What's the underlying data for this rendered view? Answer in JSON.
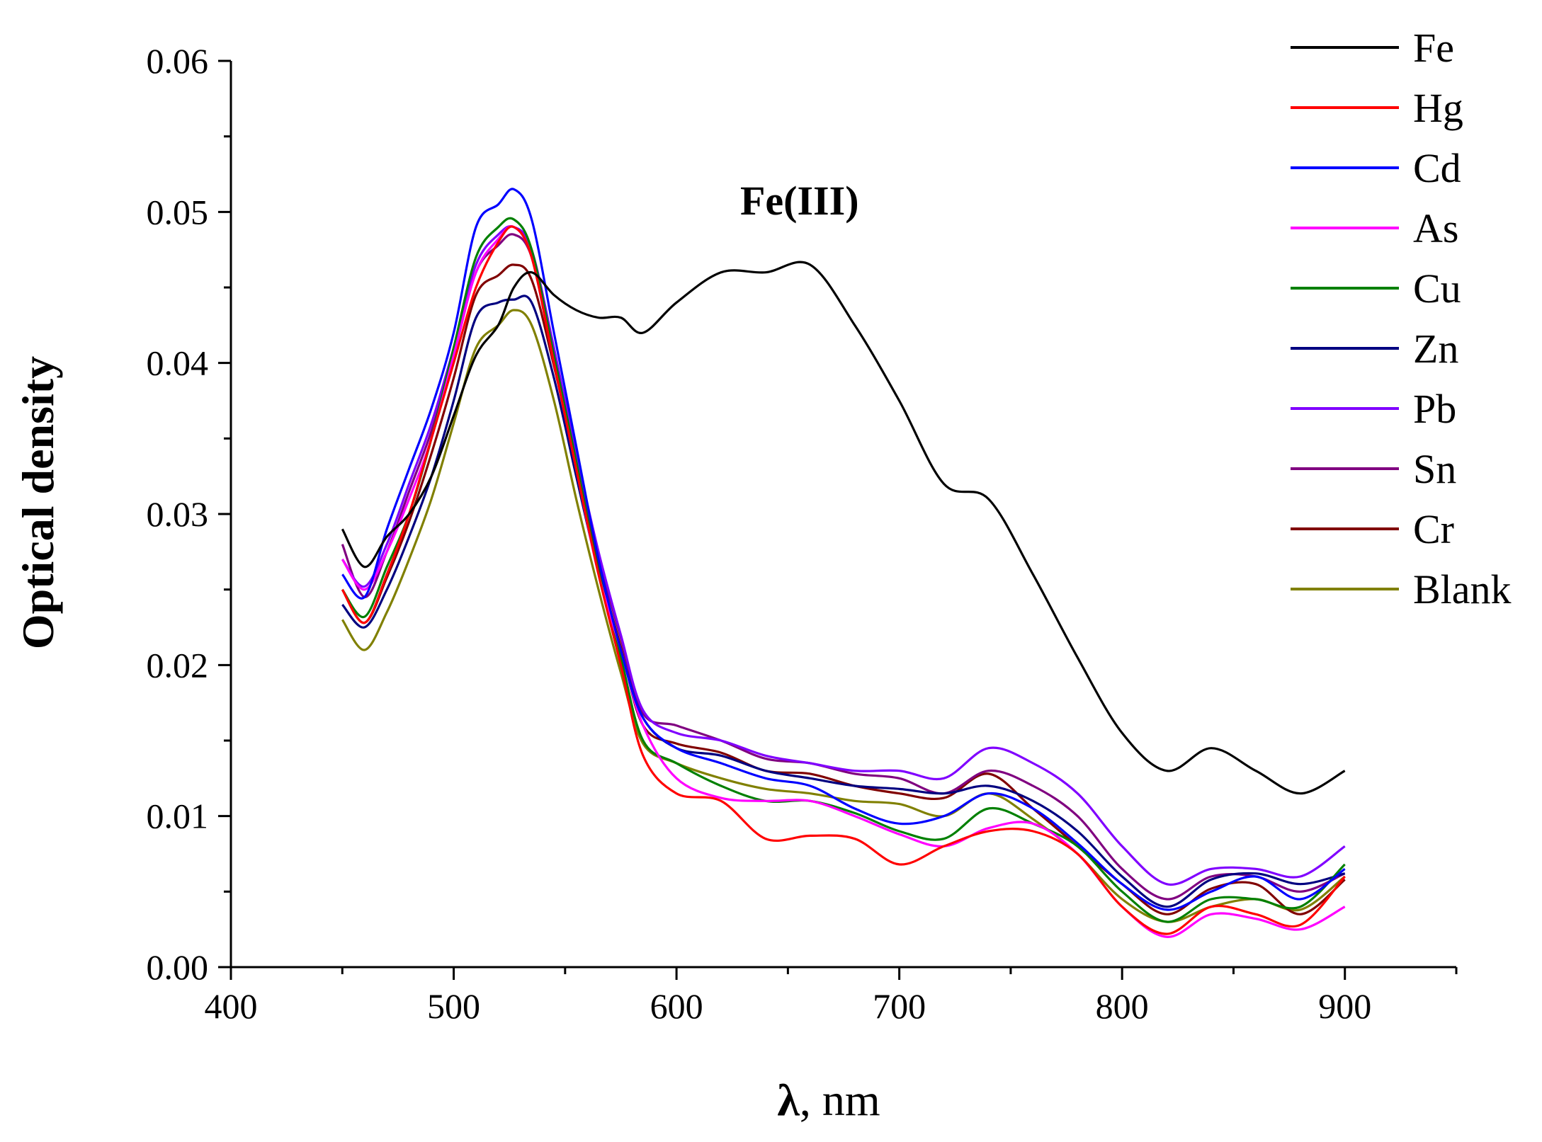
{
  "chart_data": {
    "type": "line",
    "xlabel_symbol": "λ",
    "xlabel_rest": ", nm",
    "ylabel": "Optical density",
    "annotation": "Fe(III)",
    "xlim": [
      400,
      950
    ],
    "ylim": [
      0,
      0.06
    ],
    "x_ticks": [
      400,
      500,
      600,
      700,
      800,
      900
    ],
    "x_tick_labels": [
      "400",
      "500",
      "600",
      "700",
      "800",
      "900"
    ],
    "y_ticks": [
      0,
      0.01,
      0.02,
      0.03,
      0.04,
      0.05,
      0.06
    ],
    "y_tick_labels": [
      "0.00",
      "0.01",
      "0.02",
      "0.03",
      "0.04",
      "0.05",
      "0.06"
    ],
    "legend_position": "top-right",
    "x": [
      450,
      460,
      470,
      480,
      490,
      500,
      510,
      520,
      527,
      535,
      545,
      555,
      565,
      575,
      585,
      600,
      620,
      640,
      660,
      680,
      700,
      720,
      740,
      760,
      780,
      800,
      820,
      840,
      860,
      880,
      900
    ],
    "series": [
      {
        "name": "Fe",
        "color": "#000000",
        "values": [
          0.029,
          0.0265,
          0.0285,
          0.03,
          0.0325,
          0.0365,
          0.0405,
          0.0425,
          0.045,
          0.046,
          0.0445,
          0.0435,
          0.043,
          0.043,
          0.042,
          0.044,
          0.046,
          0.046,
          0.0465,
          0.0425,
          0.0375,
          0.032,
          0.031,
          0.026,
          0.0205,
          0.0155,
          0.013,
          0.0145,
          0.013,
          0.0115,
          0.013
        ]
      },
      {
        "name": "Hg",
        "color": "#ff0000",
        "values": [
          0.025,
          0.0228,
          0.026,
          0.03,
          0.035,
          0.04,
          0.045,
          0.048,
          0.049,
          0.047,
          0.04,
          0.033,
          0.026,
          0.02,
          0.014,
          0.0115,
          0.011,
          0.0085,
          0.0087,
          0.0085,
          0.0068,
          0.008,
          0.009,
          0.009,
          0.0075,
          0.004,
          0.0022,
          0.004,
          0.0035,
          0.0028,
          0.006
        ]
      },
      {
        "name": "Cd",
        "color": "#0000ff",
        "values": [
          0.026,
          0.0245,
          0.029,
          0.033,
          0.037,
          0.042,
          0.049,
          0.0505,
          0.0515,
          0.0495,
          0.042,
          0.0345,
          0.027,
          0.021,
          0.0165,
          0.0145,
          0.0135,
          0.0125,
          0.012,
          0.0105,
          0.0095,
          0.01,
          0.0115,
          0.0105,
          0.0082,
          0.0055,
          0.0038,
          0.005,
          0.006,
          0.0045,
          0.0065
        ]
      },
      {
        "name": "As",
        "color": "#ff00ff",
        "values": [
          0.027,
          0.025,
          0.0275,
          0.031,
          0.035,
          0.0405,
          0.046,
          0.0482,
          0.049,
          0.047,
          0.04,
          0.033,
          0.026,
          0.021,
          0.016,
          0.0125,
          0.0112,
          0.011,
          0.011,
          0.01,
          0.0088,
          0.008,
          0.0092,
          0.0095,
          0.0075,
          0.004,
          0.002,
          0.0035,
          0.0032,
          0.0025,
          0.004
        ]
      },
      {
        "name": "Cu",
        "color": "#008000",
        "values": [
          0.025,
          0.0232,
          0.0265,
          0.03,
          0.035,
          0.041,
          0.047,
          0.049,
          0.0495,
          0.0475,
          0.0405,
          0.0335,
          0.0262,
          0.0205,
          0.015,
          0.0135,
          0.012,
          0.011,
          0.011,
          0.0102,
          0.009,
          0.0085,
          0.0105,
          0.0095,
          0.008,
          0.005,
          0.003,
          0.0045,
          0.0045,
          0.004,
          0.0068
        ]
      },
      {
        "name": "Zn",
        "color": "#000080",
        "values": [
          0.024,
          0.0225,
          0.025,
          0.0285,
          0.0325,
          0.0375,
          0.043,
          0.044,
          0.0442,
          0.044,
          0.039,
          0.0325,
          0.0262,
          0.021,
          0.0165,
          0.0145,
          0.014,
          0.013,
          0.0125,
          0.012,
          0.0118,
          0.0115,
          0.012,
          0.011,
          0.009,
          0.006,
          0.004,
          0.0058,
          0.0062,
          0.0055,
          0.0062
        ]
      },
      {
        "name": "Pb",
        "color": "#8000ff",
        "values": [
          0.027,
          0.0252,
          0.028,
          0.032,
          0.036,
          0.041,
          0.0465,
          0.0485,
          0.049,
          0.0475,
          0.041,
          0.034,
          0.0275,
          0.022,
          0.017,
          0.0155,
          0.015,
          0.014,
          0.0135,
          0.013,
          0.013,
          0.0125,
          0.0145,
          0.0135,
          0.0115,
          0.008,
          0.0055,
          0.0065,
          0.0065,
          0.006,
          0.008
        ]
      },
      {
        "name": "Sn",
        "color": "#800080",
        "values": [
          0.028,
          0.0245,
          0.0275,
          0.0315,
          0.0355,
          0.0405,
          0.046,
          0.0478,
          0.0485,
          0.047,
          0.0405,
          0.0338,
          0.0272,
          0.0218,
          0.0168,
          0.016,
          0.015,
          0.0138,
          0.0135,
          0.0128,
          0.0125,
          0.0115,
          0.013,
          0.012,
          0.01,
          0.0065,
          0.0045,
          0.006,
          0.006,
          0.005,
          0.0062
        ]
      },
      {
        "name": "Cr",
        "color": "#800000",
        "values": [
          0.025,
          0.0228,
          0.0258,
          0.0295,
          0.034,
          0.039,
          0.0445,
          0.0458,
          0.0465,
          0.0455,
          0.0398,
          0.0332,
          0.0266,
          0.0212,
          0.016,
          0.0148,
          0.0142,
          0.013,
          0.0128,
          0.012,
          0.0115,
          0.0112,
          0.0128,
          0.0105,
          0.008,
          0.0055,
          0.0035,
          0.0052,
          0.0055,
          0.0035,
          0.0058
        ]
      },
      {
        "name": "Blank",
        "color": "#808000",
        "values": [
          0.023,
          0.021,
          0.0235,
          0.027,
          0.031,
          0.036,
          0.041,
          0.0425,
          0.0435,
          0.0425,
          0.0375,
          0.031,
          0.025,
          0.0195,
          0.0148,
          0.0135,
          0.0125,
          0.0118,
          0.0115,
          0.011,
          0.0108,
          0.01,
          0.0115,
          0.0098,
          0.0075,
          0.0045,
          0.003,
          0.004,
          0.0045,
          0.0038,
          0.006
        ]
      }
    ]
  }
}
